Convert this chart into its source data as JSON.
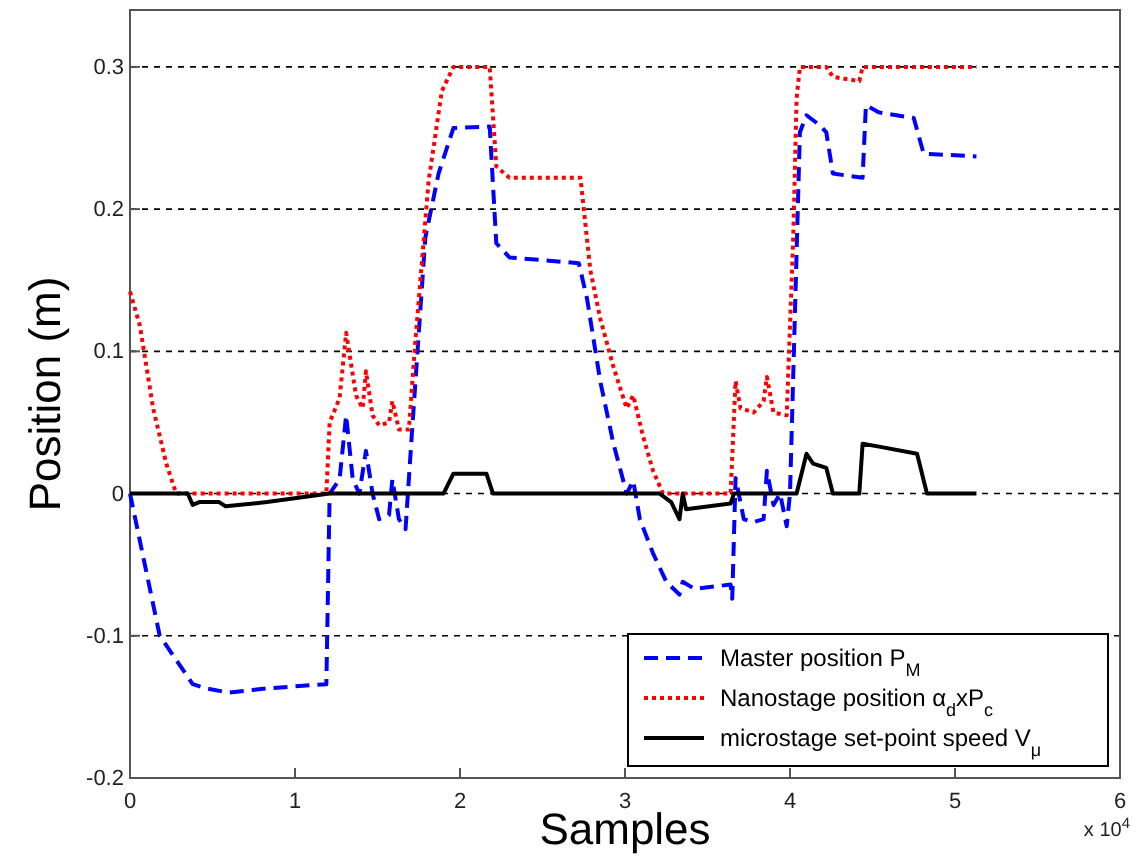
{
  "chart_data": {
    "type": "line",
    "xlabel": "Samples",
    "ylabel": "Position (m)",
    "annotations": [
      "x 10$^{4}$"
    ],
    "xlim": [
      0,
      6
    ],
    "ylim": [
      -0.2,
      0.34
    ],
    "xticks": [
      0,
      1,
      2,
      3,
      4,
      5,
      6
    ],
    "yticks": [
      -0.2,
      -0.1,
      0,
      0.1,
      0.2,
      0.3
    ],
    "grid": "y",
    "legend": "bottom right",
    "series": [
      {
        "name": "Master position P$_{M}$",
        "color": "#0000ff",
        "line_style": "dashed",
        "x": [
          0,
          0.18,
          0.38,
          0.46,
          0.6,
          0.83,
          1.19,
          1.21,
          1.27,
          1.31,
          1.35,
          1.39,
          1.43,
          1.47,
          1.51,
          1.57,
          1.59,
          1.63,
          1.67,
          1.71,
          1.79,
          1.87,
          1.96,
          2.18,
          2.22,
          2.3,
          2.72,
          2.77,
          2.85,
          2.93,
          3.01,
          3.05,
          3.09,
          3.17,
          3.25,
          3.33,
          3.35,
          3.42,
          3.64,
          3.65,
          3.67,
          3.72,
          3.78,
          3.84,
          3.86,
          3.9,
          3.94,
          3.98,
          4.0,
          4.06,
          4.1,
          4.18,
          4.22,
          4.26,
          4.44,
          4.46,
          4.54,
          4.75,
          4.81,
          5.13
        ],
        "values": [
          0,
          -0.1,
          -0.134,
          -0.137,
          -0.14,
          -0.137,
          -0.134,
          0,
          0.01,
          0.055,
          0.01,
          0,
          0.03,
          0,
          -0.018,
          -0.015,
          0.01,
          -0.018,
          -0.025,
          0.045,
          0.18,
          0.225,
          0.257,
          0.258,
          0.176,
          0.166,
          0.162,
          0.137,
          0.079,
          0.035,
          0,
          0.009,
          -0.018,
          -0.042,
          -0.062,
          -0.071,
          -0.062,
          -0.067,
          -0.064,
          -0.074,
          0.011,
          -0.018,
          -0.02,
          -0.018,
          0.016,
          -0.008,
          0,
          -0.023,
          0,
          0.254,
          0.266,
          0.259,
          0.254,
          0.225,
          0.222,
          0.273,
          0.268,
          0.264,
          0.239,
          0.237
        ]
      },
      {
        "name": "Nanostage position α$_{d}$xP$_{c}$",
        "color": "#ff0000",
        "line_style": "dotted",
        "x": [
          0,
          0.06,
          0.14,
          0.22,
          0.28,
          1.19,
          1.21,
          1.27,
          1.31,
          1.37,
          1.41,
          1.43,
          1.47,
          1.51,
          1.57,
          1.59,
          1.63,
          1.69,
          1.73,
          1.81,
          1.89,
          1.96,
          2.18,
          2.22,
          2.3,
          2.73,
          2.79,
          2.85,
          2.93,
          3.01,
          3.05,
          3.11,
          3.17,
          3.23,
          3.64,
          3.67,
          3.7,
          3.78,
          3.84,
          3.86,
          3.9,
          3.98,
          4.02,
          4.04,
          4.06,
          4.22,
          4.26,
          4.42,
          4.44,
          5.13
        ],
        "values": [
          0.142,
          0.118,
          0.06,
          0.021,
          0,
          0,
          0.05,
          0.067,
          0.113,
          0.069,
          0.06,
          0.086,
          0.055,
          0.048,
          0.05,
          0.065,
          0.045,
          0.045,
          0.108,
          0.22,
          0.283,
          0.3,
          0.3,
          0.23,
          0.222,
          0.222,
          0.157,
          0.123,
          0.089,
          0.06,
          0.069,
          0.04,
          0.016,
          0,
          0,
          0.079,
          0.06,
          0.057,
          0.065,
          0.082,
          0.057,
          0.055,
          0.181,
          0.278,
          0.3,
          0.3,
          0.293,
          0.29,
          0.3,
          0.3
        ]
      },
      {
        "name": "microstage set-point speed V$_{μ}$",
        "color": "#000000",
        "line_style": "solid",
        "x": [
          0,
          0.35,
          0.38,
          0.42,
          0.54,
          0.58,
          0.83,
          1.21,
          1.9,
          1.96,
          2.16,
          2.2,
          3.21,
          3.28,
          3.33,
          3.35,
          3.37,
          3.64,
          3.66,
          4.04,
          4.1,
          4.14,
          4.22,
          4.26,
          4.42,
          4.44,
          4.54,
          4.77,
          4.83,
          5.13
        ],
        "values": [
          0,
          0,
          -0.008,
          -0.006,
          -0.006,
          -0.009,
          -0.006,
          0,
          0,
          0.014,
          0.014,
          0,
          0,
          -0.006,
          -0.018,
          0,
          -0.011,
          -0.007,
          0,
          0,
          0.028,
          0.021,
          0.018,
          0,
          0,
          0.035,
          0.033,
          0.028,
          0,
          0
        ]
      }
    ]
  }
}
